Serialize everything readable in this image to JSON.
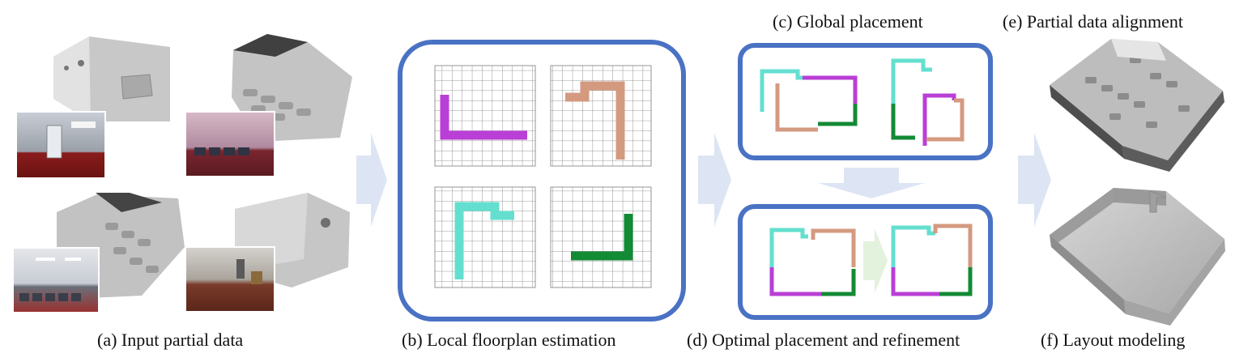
{
  "captions": {
    "a": "(a) Input partial data",
    "b": "(b) Local floorplan estimation",
    "c": "(c) Global placement",
    "d": "(d) Optimal placement and refinement",
    "e": "(e) Partial data alignment",
    "f": "(f) Layout modeling"
  },
  "colors": {
    "panel_border": "#4a72c4",
    "arrow": "#dde5f4",
    "inner_arrow_green": "#e2f2dd",
    "magenta": "#b93fd6",
    "salmon": "#d49a80",
    "cyan": "#64dfcf",
    "green": "#138a35",
    "grid": "#7a7a7a",
    "mesh": "#b9b9b9",
    "mesh_dark": "#4e4e4e"
  },
  "icons": [
    "partial-scan-thumbnail",
    "room-photo",
    "occupancy-grid",
    "flow-arrow",
    "3d-mesh",
    "layout-model"
  ]
}
